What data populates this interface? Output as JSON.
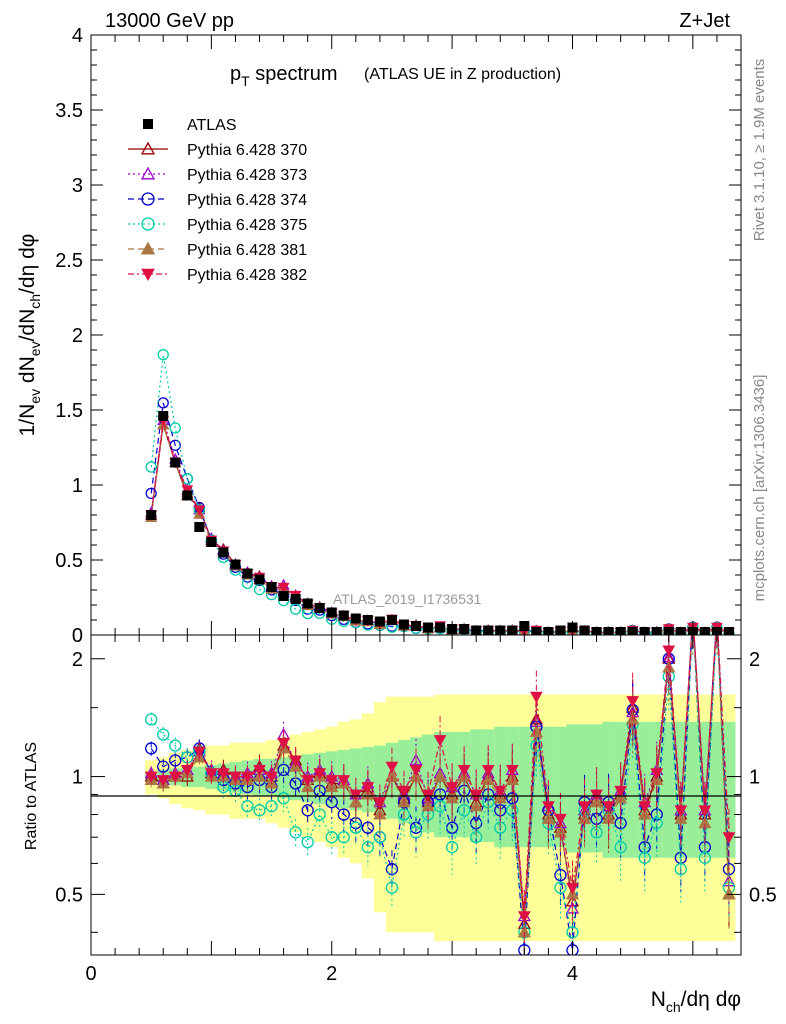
{
  "header": {
    "left_label": "13000 GeV pp",
    "right_label": "Z+Jet"
  },
  "plot_title": {
    "main": "p",
    "main_sub": "T",
    "main_rest": " spectrum",
    "paren": "(ATLAS UE in Z production)"
  },
  "side_labels": {
    "rivet": "Rivet 3.1.10, ≥ 1.9M events",
    "mcplots": "mcplots.cern.ch [arXiv:1306.3436]"
  },
  "watermark": "ATLAS_2019_I1736531",
  "chart_data": {
    "type": "scatter",
    "title": "pT spectrum (ATLAS UE in Z production)",
    "xlabel": "N_ch/dη dφ",
    "ylabel": "1/N_ev dN_ev/dN_ch/dη dφ",
    "ratio_ylabel": "Ratio to ATLAS",
    "xlim": [
      0,
      5.4
    ],
    "ylim_main": [
      0,
      4
    ],
    "ylim_ratio": [
      0.35,
      2.3
    ],
    "x_ticks": [
      0,
      2,
      4
    ],
    "y_ticks_main": [
      0,
      0.5,
      1,
      1.5,
      2,
      2.5,
      3,
      3.5,
      4
    ],
    "y_ticks_ratio": [
      0.5,
      1,
      2
    ],
    "x": [
      0.5,
      0.6,
      0.7,
      0.8,
      0.9,
      1.0,
      1.1,
      1.2,
      1.3,
      1.4,
      1.5,
      1.6,
      1.7,
      1.8,
      1.9,
      2.0,
      2.1,
      2.2,
      2.3,
      2.4,
      2.5,
      2.6,
      2.7,
      2.8,
      2.9,
      3.0,
      3.1,
      3.2,
      3.3,
      3.4,
      3.5,
      3.6,
      3.7,
      3.8,
      3.9,
      4.0,
      4.1,
      4.2,
      4.3,
      4.4,
      4.5,
      4.6,
      4.7,
      4.8,
      4.9,
      5.0,
      5.1,
      5.2,
      5.3
    ],
    "data": {
      "name": "ATLAS",
      "values": [
        0.8,
        1.46,
        1.15,
        0.93,
        0.72,
        0.62,
        0.55,
        0.47,
        0.41,
        0.37,
        0.32,
        0.26,
        0.24,
        0.21,
        0.18,
        0.15,
        0.13,
        0.11,
        0.1,
        0.09,
        0.1,
        0.07,
        0.06,
        0.05,
        0.05,
        0.04,
        0.04,
        0.03,
        0.03,
        0.03,
        0.03,
        0.06,
        0.02,
        0.02,
        0.03,
        0.05,
        0.03,
        0.02,
        0.02,
        0.02,
        0.02,
        0.02,
        0.02,
        0.02,
        0.02,
        0.02,
        0.02,
        0.02,
        0.02
      ]
    },
    "bands": {
      "inner_color": "#99ee99",
      "outer_color": "#ffff99",
      "inner_halfwidth": [
        0.03,
        0.04,
        0.05,
        0.06,
        0.06,
        0.07,
        0.08,
        0.09,
        0.1,
        0.11,
        0.11,
        0.12,
        0.13,
        0.14,
        0.15,
        0.16,
        0.17,
        0.18,
        0.19,
        0.2,
        0.22,
        0.24,
        0.26,
        0.28,
        0.3,
        0.3,
        0.3,
        0.32,
        0.32,
        0.34,
        0.34,
        0.34,
        0.34,
        0.34,
        0.34,
        0.36,
        0.36,
        0.36,
        0.38,
        0.38,
        0.38,
        0.38,
        0.38,
        0.38,
        0.38,
        0.38,
        0.38,
        0.38,
        0.38
      ],
      "outer_halfwidth": [
        0.1,
        0.12,
        0.15,
        0.17,
        0.18,
        0.2,
        0.2,
        0.22,
        0.22,
        0.22,
        0.24,
        0.26,
        0.28,
        0.3,
        0.32,
        0.34,
        0.38,
        0.4,
        0.45,
        0.55,
        0.6,
        0.6,
        0.6,
        0.6,
        0.62,
        0.62,
        0.62,
        0.62,
        0.62,
        0.62,
        0.62,
        0.62,
        0.62,
        0.62,
        0.62,
        0.62,
        0.62,
        0.62,
        0.62,
        0.62,
        0.62,
        0.62,
        0.62,
        0.62,
        0.62,
        0.62,
        0.62,
        0.62,
        0.62
      ]
    },
    "series": [
      {
        "name": "Pythia 6.428 370",
        "color": "#990000",
        "marker": "triangle-open",
        "dash": "solid",
        "ratio": [
          1.0,
          0.96,
          1.0,
          1.0,
          1.18,
          1.02,
          1.04,
          1.0,
          1.0,
          1.06,
          1.0,
          1.2,
          1.1,
          0.98,
          1.02,
          0.96,
          0.96,
          0.86,
          0.94,
          0.82,
          1.0,
          0.88,
          1.0,
          0.86,
          1.0,
          0.9,
          1.0,
          0.86,
          1.0,
          0.9,
          1.0,
          0.42,
          1.4,
          0.8,
          0.74,
          0.48,
          0.8,
          0.88,
          0.8,
          0.9,
          1.5,
          0.82,
          1.0,
          2.0,
          0.8,
          2.6,
          0.8,
          2.6,
          0.5
        ]
      },
      {
        "name": "Pythia 6.428 373",
        "color": "#9900cc",
        "marker": "triangle-open",
        "dash": "dotted",
        "ratio": [
          1.02,
          0.98,
          1.02,
          1.04,
          1.16,
          1.04,
          1.02,
          1.0,
          1.02,
          1.04,
          1.02,
          1.28,
          1.08,
          1.0,
          1.04,
          1.0,
          0.98,
          0.9,
          0.96,
          0.86,
          1.0,
          0.9,
          1.1,
          0.88,
          1.02,
          0.94,
          1.02,
          0.9,
          1.02,
          0.92,
          1.04,
          0.44,
          1.38,
          0.84,
          0.76,
          0.46,
          0.82,
          0.9,
          0.84,
          0.92,
          1.46,
          0.86,
          1.04,
          2.02,
          0.82,
          2.6,
          0.82,
          2.6,
          0.54
        ]
      },
      {
        "name": "Pythia 6.428 374",
        "color": "#0000cc",
        "marker": "circle-open",
        "dash": "dashed",
        "ratio": [
          1.18,
          1.06,
          1.1,
          1.12,
          1.18,
          1.02,
          0.98,
          0.96,
          0.94,
          0.98,
          0.94,
          1.04,
          0.96,
          0.82,
          0.92,
          0.86,
          0.8,
          0.76,
          0.74,
          0.7,
          0.58,
          0.86,
          0.74,
          0.86,
          0.9,
          0.74,
          0.92,
          0.76,
          0.9,
          0.82,
          0.88,
          0.36,
          1.34,
          0.82,
          0.56,
          0.36,
          0.86,
          0.78,
          0.86,
          0.76,
          1.48,
          0.66,
          0.8,
          2.0,
          0.62,
          2.6,
          0.66,
          2.6,
          0.58
        ]
      },
      {
        "name": "Pythia 6.428 375",
        "color": "#00ccaa",
        "marker": "circle-open",
        "dash": "dotted",
        "ratio": [
          1.4,
          1.28,
          1.2,
          1.12,
          1.16,
          1.02,
          0.94,
          0.92,
          0.84,
          0.82,
          0.84,
          0.88,
          0.72,
          0.68,
          0.8,
          0.7,
          0.7,
          0.74,
          0.66,
          0.7,
          0.52,
          0.8,
          0.72,
          0.8,
          0.84,
          0.66,
          0.82,
          0.7,
          0.86,
          0.74,
          0.82,
          0.4,
          1.2,
          0.76,
          0.52,
          0.4,
          0.82,
          0.72,
          0.82,
          0.66,
          1.36,
          0.62,
          0.76,
          1.8,
          0.58,
          2.5,
          0.62,
          2.5,
          0.52
        ]
      },
      {
        "name": "Pythia 6.428 381",
        "color": "#aa7744",
        "marker": "triangle-filled",
        "dash": "dashed",
        "ratio": [
          0.98,
          0.96,
          1.0,
          1.02,
          1.12,
          1.0,
          1.0,
          0.98,
          0.98,
          1.0,
          0.96,
          1.18,
          1.06,
          0.94,
          1.0,
          0.94,
          0.96,
          0.86,
          0.9,
          0.8,
          1.0,
          0.86,
          1.0,
          0.84,
          1.0,
          0.88,
          1.0,
          0.84,
          0.98,
          0.88,
          0.98,
          0.4,
          1.3,
          0.78,
          0.72,
          0.5,
          0.78,
          0.86,
          0.78,
          0.88,
          1.4,
          0.8,
          0.98,
          1.9,
          0.78,
          2.5,
          0.76,
          2.5,
          0.5
        ]
      },
      {
        "name": "Pythia 6.428 382",
        "color": "#dd1144",
        "marker": "triangle-down-filled",
        "dash": "dashdot",
        "ratio": [
          1.0,
          0.98,
          1.0,
          1.04,
          1.16,
          1.02,
          1.02,
          1.0,
          1.0,
          1.04,
          1.0,
          1.22,
          1.1,
          0.98,
          1.02,
          0.98,
          0.98,
          0.9,
          0.94,
          0.86,
          1.06,
          0.92,
          1.04,
          0.9,
          1.24,
          0.94,
          1.04,
          0.9,
          1.04,
          0.92,
          1.04,
          0.44,
          1.6,
          0.84,
          0.78,
          0.52,
          0.84,
          0.9,
          0.84,
          0.92,
          1.56,
          0.84,
          1.02,
          2.1,
          0.82,
          2.6,
          0.82,
          2.6,
          0.7
        ]
      }
    ]
  }
}
